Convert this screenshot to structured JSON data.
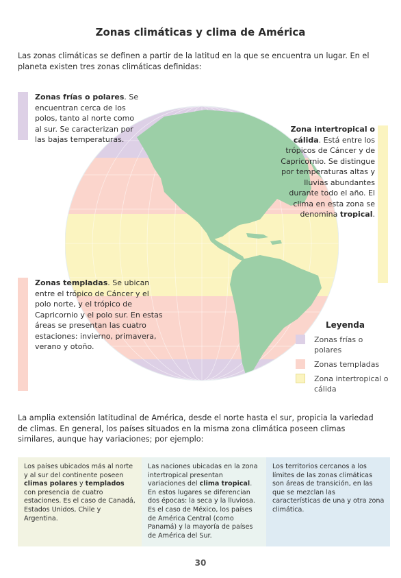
{
  "page": {
    "title": "Zonas climáticas y clima de América",
    "intro": "Las zonas climáticas se definen a partir de la latitud en la que se encuentra un lugar. En el planeta existen tres zonas climáticas definidas:",
    "number": "30"
  },
  "zones": {
    "polar": {
      "bold": "Zonas frías o polares",
      "rest": ". Se encuentran cerca de los polos, tanto al norte como al sur. Se caracterizan por las bajas temperaturas."
    },
    "tropical": {
      "bold": "Zona intertropical o cálida",
      "rest": ". Está entre los trópicos de Cáncer y de Capricornio. Se distingue por temperaturas altas y lluvias abundantes durante todo el año. El clima en esta zona se denomina ",
      "bold2": "tropical",
      "end": "."
    },
    "temperate": {
      "bold": "Zonas templadas",
      "rest": ". Se ubican entre el trópico de Cáncer y el polo norte, y el trópico de Capricornio y el polo sur. En estas áreas se presentan las cuatro estaciones: invierno, primavera, verano y otoño."
    }
  },
  "legend": {
    "title": "Leyenda",
    "items": [
      {
        "label": "Zonas frías o polares",
        "color": "#ddd0e6"
      },
      {
        "label": "Zonas templadas",
        "color": "#fbd5cc"
      },
      {
        "label": "Zona intertropical o cálida",
        "color": "#fbf4c0"
      }
    ]
  },
  "colors": {
    "ocean": "#bfe1ec",
    "land": "#9ccfa7",
    "polar": "#ddd0e6",
    "temperate": "#fbd5cc",
    "tropical": "#fbf4c0"
  },
  "paragraph2": "La amplia extensión latitudinal de América, desde el norte hasta el sur, propicia la variedad de climas. En general, los países situados en la misma zona climática poseen climas similares, aunque hay variaciones; por ejemplo:",
  "boxes": [
    {
      "a": "Los países ubicados más al norte y al sur del continente poseen ",
      "b1": "climas polares",
      "c": " y ",
      "b2": "templados",
      "d": " con presencia de cuatro estaciones. Es el caso de Canadá, Estados Unidos, Chile y Argentina."
    },
    {
      "a": "Las naciones ubicadas en la zona intertropical presentan variaciones del ",
      "b1": "clima tropical",
      "c": ". En estos lugares se diferencian dos épocas: la seca y la lluviosa. Es el caso de México, los países de América Central (como Panamá) y la mayoría de países de América del Sur.",
      "b2": "",
      "d": ""
    },
    {
      "a": "Los territorios cercanos a los límites de las zonas climáticas son áreas de transición, en las que se mezclan las características de una y otra zona climática.",
      "b1": "",
      "c": "",
      "b2": "",
      "d": ""
    }
  ]
}
